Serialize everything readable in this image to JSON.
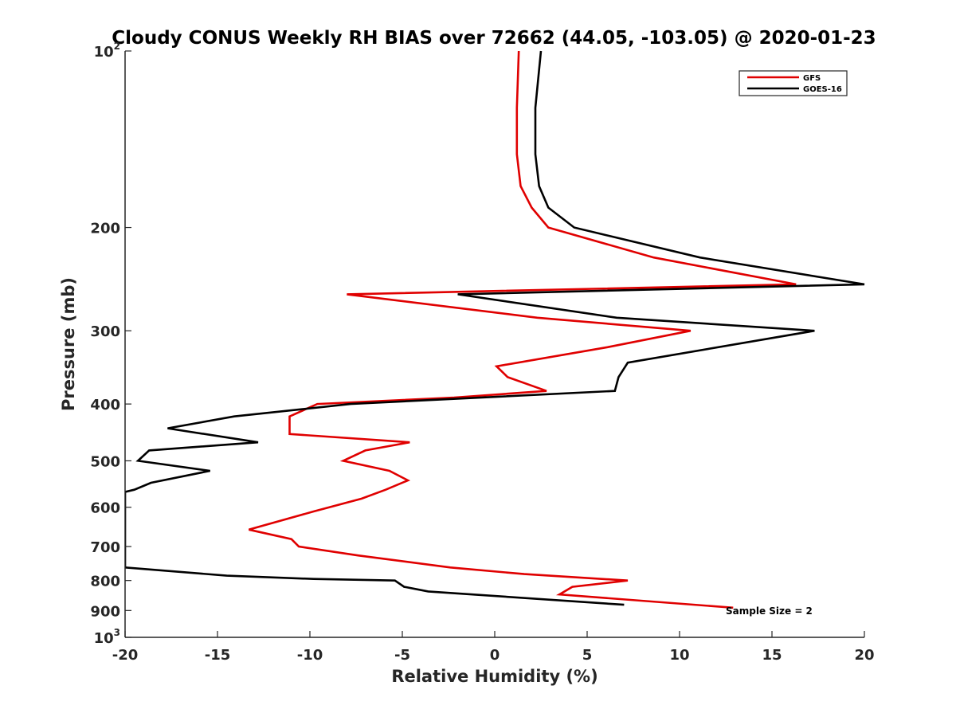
{
  "chart_data": {
    "type": "line",
    "title": "Cloudy CONUS Weekly RH BIAS over 72662 (44.05, -103.05) @ 2020-01-23",
    "xlabel": "Relative Humidity (%)",
    "ylabel": "Pressure (mb)",
    "xlim": [
      -20,
      20
    ],
    "ylim": [
      100,
      1000
    ],
    "yscale": "log",
    "y_reversed": true,
    "grid": false,
    "legend_position": "top-right",
    "x_ticks": [
      "-20",
      "-15",
      "-10",
      "-5",
      "0",
      "5",
      "10",
      "15",
      "20"
    ],
    "y_ticks": [
      {
        "value": 100,
        "base": "10",
        "exp": "2"
      },
      {
        "value": 200,
        "label": "200"
      },
      {
        "value": 300,
        "label": "300"
      },
      {
        "value": 400,
        "label": "400"
      },
      {
        "value": 500,
        "label": "500"
      },
      {
        "value": 600,
        "label": "600"
      },
      {
        "value": 700,
        "label": "700"
      },
      {
        "value": 800,
        "label": "800"
      },
      {
        "value": 900,
        "label": "900"
      },
      {
        "value": 1000,
        "base": "10",
        "exp": "3"
      }
    ],
    "annotation": "Sample Size = 2",
    "series": [
      {
        "name": "GFS",
        "color": "#e00000",
        "points": [
          [
            1.3,
            100
          ],
          [
            1.2,
            125
          ],
          [
            1.2,
            150
          ],
          [
            1.4,
            170
          ],
          [
            2.0,
            185
          ],
          [
            2.9,
            200
          ],
          [
            8.6,
            225
          ],
          [
            16.3,
            250
          ],
          [
            -8.0,
            260
          ],
          [
            2.3,
            285
          ],
          [
            10.6,
            300
          ],
          [
            6.1,
            320
          ],
          [
            0.1,
            345
          ],
          [
            0.7,
            360
          ],
          [
            2.8,
            380
          ],
          [
            -2.2,
            390
          ],
          [
            -9.6,
            400
          ],
          [
            -11.1,
            420
          ],
          [
            -11.1,
            450
          ],
          [
            -4.6,
            465
          ],
          [
            -7.0,
            480
          ],
          [
            -8.2,
            500
          ],
          [
            -5.7,
            520
          ],
          [
            -4.7,
            540
          ],
          [
            -5.9,
            560
          ],
          [
            -7.2,
            580
          ],
          [
            -9.8,
            610
          ],
          [
            -13.3,
            655
          ],
          [
            -11.0,
            680
          ],
          [
            -10.6,
            700
          ],
          [
            -7.4,
            725
          ],
          [
            -2.4,
            760
          ],
          [
            1.6,
            780
          ],
          [
            7.2,
            800
          ],
          [
            4.2,
            820
          ],
          [
            3.5,
            845
          ],
          [
            12.9,
            890
          ]
        ]
      },
      {
        "name": "GOES-16",
        "color": "#000000",
        "points": [
          [
            2.5,
            100
          ],
          [
            2.2,
            125
          ],
          [
            2.2,
            150
          ],
          [
            2.4,
            170
          ],
          [
            2.9,
            185
          ],
          [
            4.3,
            200
          ],
          [
            11.1,
            225
          ],
          [
            20.0,
            250
          ],
          [
            -2.0,
            260
          ],
          [
            6.6,
            285
          ],
          [
            17.3,
            300
          ],
          [
            7.2,
            340
          ],
          [
            6.7,
            360
          ],
          [
            6.5,
            380
          ],
          [
            -7.8,
            400
          ],
          [
            -14.1,
            420
          ],
          [
            -17.7,
            440
          ],
          [
            -12.8,
            465
          ],
          [
            -18.7,
            480
          ],
          [
            -19.3,
            500
          ],
          [
            -15.4,
            520
          ],
          [
            -18.6,
            545
          ],
          [
            -19.5,
            560
          ],
          [
            -20.0,
            565
          ],
          [
            -20.0,
            760
          ],
          [
            -14.5,
            785
          ],
          [
            -9.8,
            795
          ],
          [
            -5.4,
            800
          ],
          [
            -4.9,
            820
          ],
          [
            -3.6,
            835
          ],
          [
            7.0,
            880
          ]
        ]
      }
    ]
  }
}
